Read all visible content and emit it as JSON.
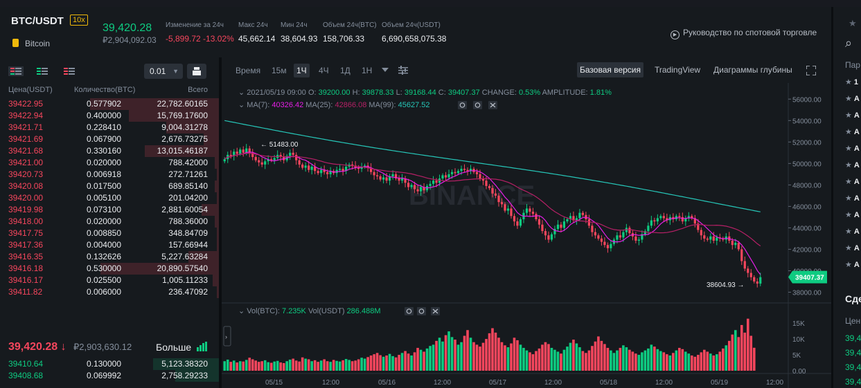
{
  "header": {
    "symbol": "BTC/USDT",
    "leverage": "10x",
    "coin_name": "Bitcoin",
    "last_price": "39,420.28",
    "last_price_rub": "₽2,904,092.03",
    "stats": [
      {
        "label": "Изменение за 24ч",
        "value": "-5,899.72 -13.02%",
        "color": "#f6465d"
      },
      {
        "label": "Макс 24ч",
        "value": "45,662.14",
        "color": "#eaecef"
      },
      {
        "label": "Мин 24ч",
        "value": "38,604.93",
        "color": "#eaecef"
      },
      {
        "label": "Объем 24ч(BTC)",
        "value": "158,706.33",
        "color": "#eaecef"
      },
      {
        "label": "Объем 24ч(USDT)",
        "value": "6,690,658,075.38",
        "color": "#eaecef"
      }
    ],
    "guide_link": "Руководство по спотовой торговле"
  },
  "orderbook": {
    "step": "0.01",
    "columns": [
      "Цена(USDT)",
      "Количество(BTC)",
      "Всего"
    ],
    "asks": [
      {
        "price": "39422.95",
        "qty": "0.577902",
        "total": "22,782.60165",
        "depth": 0.59
      },
      {
        "price": "39422.94",
        "qty": "0.400000",
        "total": "15,769.17600",
        "depth": 0.41
      },
      {
        "price": "39421.71",
        "qty": "0.228410",
        "total": "9,004.31278",
        "depth": 0.24
      },
      {
        "price": "39421.69",
        "qty": "0.067900",
        "total": "2,676.73275",
        "depth": 0.07
      },
      {
        "price": "39421.68",
        "qty": "0.330160",
        "total": "13,015.46187",
        "depth": 0.34
      },
      {
        "price": "39421.00",
        "qty": "0.020000",
        "total": "788.42000",
        "depth": 0.02
      },
      {
        "price": "39420.73",
        "qty": "0.006918",
        "total": "272.71261",
        "depth": 0.01
      },
      {
        "price": "39420.08",
        "qty": "0.017500",
        "total": "689.85140",
        "depth": 0.02
      },
      {
        "price": "39420.00",
        "qty": "0.005100",
        "total": "201.04200",
        "depth": 0.01
      },
      {
        "price": "39419.98",
        "qty": "0.073100",
        "total": "2,881.60054",
        "depth": 0.08
      },
      {
        "price": "39418.00",
        "qty": "0.020000",
        "total": "788.36000",
        "depth": 0.02
      },
      {
        "price": "39417.75",
        "qty": "0.008850",
        "total": "348.84709",
        "depth": 0.01
      },
      {
        "price": "39417.36",
        "qty": "0.004000",
        "total": "157.66944",
        "depth": 0.01
      },
      {
        "price": "39416.35",
        "qty": "0.132626",
        "total": "5,227.63284",
        "depth": 0.14
      },
      {
        "price": "39416.18",
        "qty": "0.530000",
        "total": "20,890.57540",
        "depth": 0.54
      },
      {
        "price": "39416.17",
        "qty": "0.025500",
        "total": "1,005.11233",
        "depth": 0.03
      },
      {
        "price": "39411.82",
        "qty": "0.006000",
        "total": "236.47092",
        "depth": 0.01
      }
    ],
    "mid_price": "39,420.28 ↓",
    "mid_price_rub": "₽2,903,630.12",
    "more_label": "Больше",
    "bids": [
      {
        "price": "39410.64",
        "qty": "0.130000",
        "total": "5,123.38320",
        "depth": 0.3
      },
      {
        "price": "39408.68",
        "qty": "0.069992",
        "total": "2,758.29233",
        "depth": 0.2
      }
    ]
  },
  "chart_toolbar": {
    "intervals": [
      "Время",
      "15м",
      "1Ч",
      "4Ч",
      "1Д",
      "1Н"
    ],
    "active_interval": "1Ч",
    "views": [
      "Базовая версия",
      "TradingView",
      "Диаграммы глубины"
    ],
    "active_view": "Базовая версия"
  },
  "chart_data": {
    "type": "candlestick",
    "ohlc_label": {
      "date": "2021/05/19 09:00",
      "open": "39200.00",
      "high": "39878.33",
      "low": "39168.44",
      "close": "39407.37",
      "change": "0.53%",
      "amplitude": "1.81%"
    },
    "ma_label": {
      "ma7": "40326.42",
      "ma25": "42866.08",
      "ma99": "45627.52"
    },
    "vol_label": {
      "btc": "7.235K",
      "usdt": "286.488M"
    },
    "ylim": [
      37000,
      57500
    ],
    "y_ticks": [
      "56000.00",
      "54000.00",
      "52000.00",
      "50000.00",
      "48000.00",
      "46000.00",
      "44000.00",
      "42000.00",
      "40000.00",
      "38000.00"
    ],
    "y_tick_values": [
      56000,
      54000,
      52000,
      50000,
      48000,
      46000,
      44000,
      42000,
      40000,
      38000
    ],
    "vol_ticks": [
      "15K",
      "10K",
      "5K",
      "0.00"
    ],
    "vol_tick_values": [
      15000,
      10000,
      5000,
      0
    ],
    "x_ticks": [
      "05/15",
      "12:00",
      "05/16",
      "12:00",
      "05/17",
      "12:00",
      "05/18",
      "12:00",
      "05/19",
      "12:00"
    ],
    "current_price": "39407.37",
    "high_marker": "51483.00",
    "low_marker": "38604.93",
    "watermark": "BINANCE",
    "closes": [
      50400,
      50800,
      50700,
      51100,
      50900,
      51300,
      51000,
      51400,
      51000,
      50600,
      50300,
      50100,
      49900,
      50200,
      50400,
      50300,
      50500,
      50800,
      50600,
      50300,
      50700,
      51000,
      50800,
      50300,
      49900,
      49600,
      49800,
      49400,
      49700,
      49300,
      49100,
      49400,
      49200,
      49000,
      49300,
      49100,
      49400,
      49500,
      49300,
      49700,
      49900,
      49800,
      49600,
      49500,
      49700,
      49800,
      49600,
      49200,
      48900,
      48800,
      48500,
      48700,
      48400,
      48800,
      49000,
      48600,
      48400,
      48600,
      48200,
      47800,
      48000,
      47600,
      47400,
      47800,
      47500,
      47900,
      48100,
      48400,
      48200,
      48600,
      48900,
      48700,
      49000,
      49200,
      49100,
      49300,
      49500,
      49400,
      49300,
      49500,
      49200,
      49000,
      48600,
      48400,
      47900,
      47700,
      47200,
      47000,
      46400,
      46200,
      45600,
      45800,
      45100,
      44600,
      44200,
      44800,
      45400,
      45800,
      45500,
      45300,
      44800,
      44300,
      43700,
      43300,
      42900,
      43400,
      43900,
      44300,
      44000,
      44600,
      44800,
      45100,
      44700,
      44900,
      45400,
      45200,
      44800,
      44200,
      43600,
      43300,
      43000,
      42700,
      42400,
      42100,
      42500,
      42900,
      43300,
      43100,
      43600,
      44000,
      43500,
      43200,
      42800,
      42900,
      43400,
      43700,
      44200,
      44700,
      44600,
      44900,
      45100,
      44900,
      44700,
      45000,
      44800,
      45100,
      45000,
      44600,
      44900,
      45100,
      44900,
      44400,
      43800,
      43300,
      43000,
      42900,
      43200,
      42800,
      43100,
      43000,
      42900,
      43200,
      42800,
      42400,
      42600,
      42000,
      40900,
      40200,
      39800,
      39400,
      39000,
      38800,
      39400
    ],
    "volumes": [
      3000,
      3500,
      2800,
      3200,
      2600,
      3000,
      2900,
      3400,
      4100,
      3600,
      3200,
      2800,
      3000,
      3300,
      2700,
      2500,
      2900,
      3100,
      2600,
      2400,
      3000,
      3500,
      3800,
      3200,
      2900,
      4200,
      3800,
      3600,
      3000,
      3300,
      2800,
      3200,
      3600,
      3000,
      2800,
      3400,
      3100,
      2900,
      3300,
      3700,
      3400,
      3000,
      3200,
      3600,
      4100,
      3800,
      4300,
      4800,
      5200,
      5600,
      4900,
      4400,
      4800,
      5300,
      4600,
      4200,
      5000,
      5600,
      6200,
      5400,
      4800,
      5800,
      7200,
      6600,
      6000,
      7000,
      7800,
      8200,
      9400,
      10400,
      9200,
      11200,
      12400,
      10600,
      9800,
      8200,
      9000,
      11000,
      12800,
      10400,
      9000,
      8200,
      7600,
      8800,
      10000,
      11800,
      13400,
      12000,
      10400,
      9000,
      8000,
      7400,
      8600,
      10400,
      9600,
      8200,
      7200,
      6400,
      5800,
      5200,
      6200,
      7000,
      8200,
      9000,
      8400,
      7200,
      6600,
      6000,
      5400,
      6600,
      7600,
      8800,
      9800,
      8600,
      7400,
      6200,
      5600,
      6400,
      7800,
      9200,
      10800,
      9400,
      8400,
      7200,
      6400,
      5600,
      6400,
      7200,
      8000,
      7400,
      6600,
      6000,
      5400,
      5000,
      5800,
      6400,
      7000,
      8200,
      7600,
      6800,
      6200,
      5800,
      5200,
      4800,
      5600,
      6400,
      7200,
      6800,
      6000,
      5400,
      4800,
      4400,
      5000,
      5800,
      6600,
      6000,
      5400,
      4800,
      5200,
      6000,
      7000,
      8000,
      9400,
      11400,
      12800,
      10600,
      14400,
      12000,
      16400,
      11000,
      7235
    ]
  },
  "colors": {
    "up": "#0ecb81",
    "down": "#f6465d",
    "ma7": "#e61ee6",
    "ma25": "#b62066",
    "ma99": "#26c6b8"
  },
  "right_panel": {
    "label": "Пар",
    "items": [
      "1",
      "А",
      "А",
      "А",
      "А",
      "А",
      "А",
      "А",
      "А",
      "А",
      "А",
      "А"
    ],
    "section": "Сде",
    "sub": "Цен",
    "prices": [
      "39,4",
      "39,4",
      "39,4",
      "39,4"
    ]
  }
}
